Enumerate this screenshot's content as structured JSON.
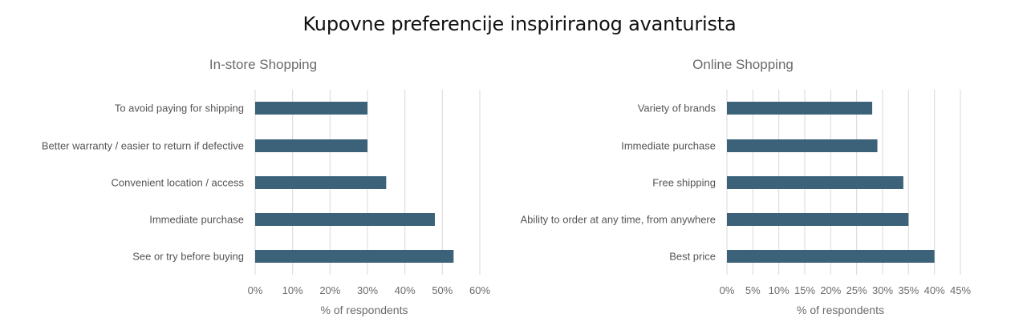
{
  "page": {
    "title": "Kupovne preferencije inspiriranog avanturista"
  },
  "chart_data": [
    {
      "type": "bar",
      "orientation": "horizontal",
      "title": "In-store Shopping",
      "xlabel": "% of respondents",
      "ylabel": "",
      "categories": [
        "To avoid paying for shipping",
        "Better warranty / easier to return if defective",
        "Convenient location / access",
        "Immediate purchase",
        "See or try before buying"
      ],
      "values": [
        30,
        30,
        35,
        48,
        53
      ],
      "xlim": [
        0,
        60
      ],
      "ticks": [
        0,
        10,
        20,
        30,
        40,
        50,
        60
      ],
      "tick_labels": [
        "0%",
        "10%",
        "20%",
        "30%",
        "40%",
        "50%",
        "60%"
      ],
      "grid": true,
      "color": "#3b6279"
    },
    {
      "type": "bar",
      "orientation": "horizontal",
      "title": "Online Shopping",
      "xlabel": "% of respondents",
      "ylabel": "",
      "categories": [
        "Variety of brands",
        "Immediate purchase",
        "Free shipping",
        "Ability to order at any time, from anywhere",
        "Best price"
      ],
      "values": [
        28,
        29,
        34,
        35,
        40
      ],
      "xlim": [
        0,
        45
      ],
      "ticks": [
        0,
        5,
        10,
        15,
        20,
        25,
        30,
        35,
        40,
        45
      ],
      "tick_labels": [
        "0%",
        "5%",
        "10%",
        "15%",
        "20%",
        "25%",
        "30%",
        "35%",
        "40%",
        "45%"
      ],
      "grid": true,
      "color": "#3b6279"
    }
  ]
}
